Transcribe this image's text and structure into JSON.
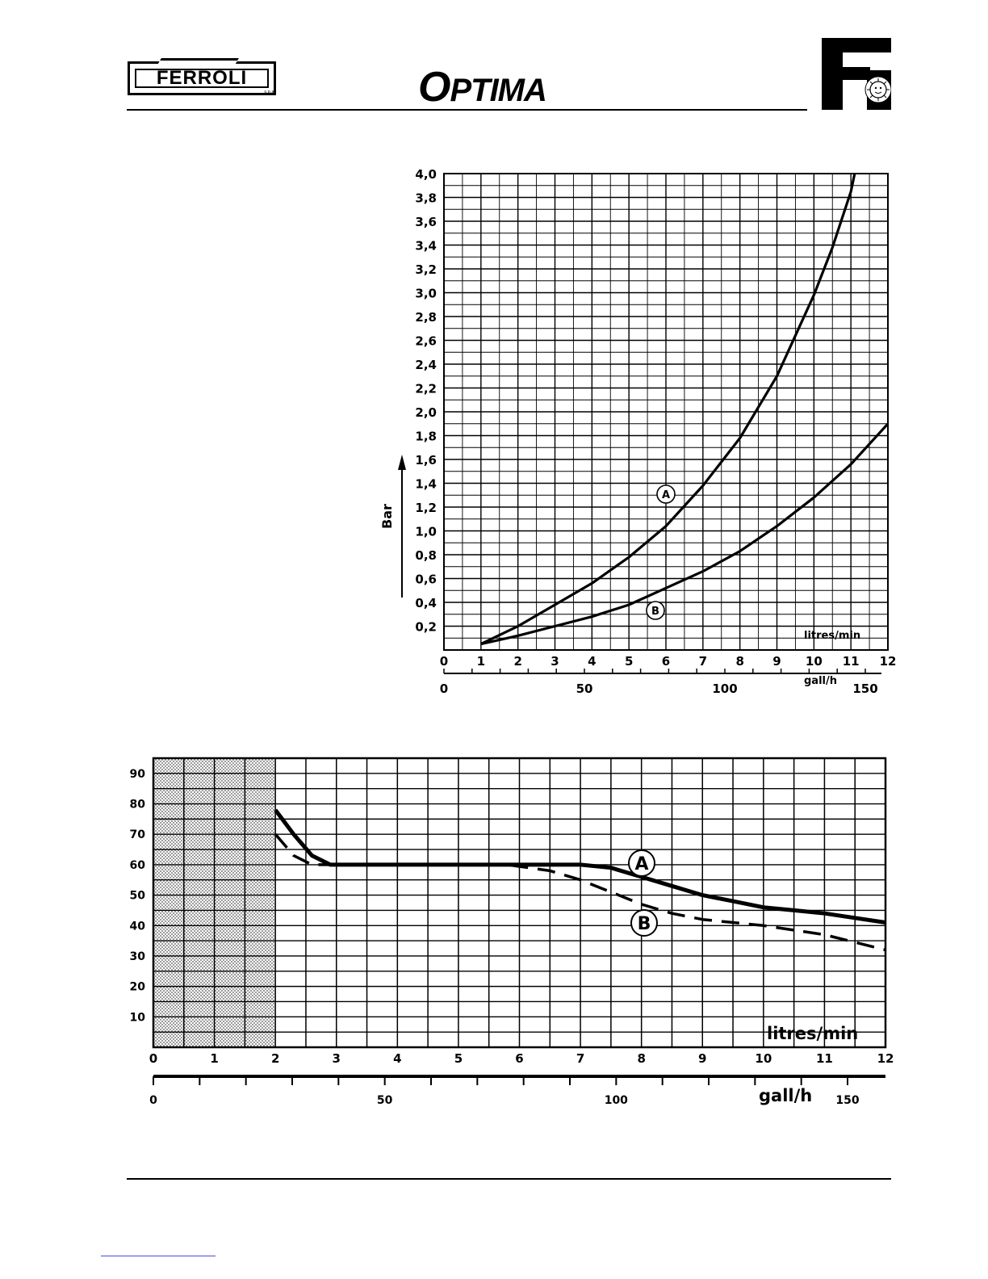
{
  "header": {
    "brand": "FERROLI",
    "brand_suffix": "s.p.a.",
    "product": "OPTIMA",
    "product_first": "O",
    "product_rest": "PTIMA",
    "emblem_icon": "ferroli-f-sun-emblem-icon"
  },
  "chart_data": [
    {
      "type": "line",
      "title": "",
      "ylabel": "Bar",
      "xlabel": "litres/min",
      "xlabel2": "gall/h",
      "xlim": [
        0,
        12
      ],
      "ylim": [
        0,
        4.0
      ],
      "x_ticks": [
        "0",
        "1",
        "2",
        "3",
        "4",
        "5",
        "6",
        "7",
        "8",
        "9",
        "10",
        "11",
        "12"
      ],
      "x2_ticks": [
        "0",
        "50",
        "100",
        "150"
      ],
      "y_ticks": [
        "0,2",
        "0,4",
        "0,6",
        "0,8",
        "1,0",
        "1,2",
        "1,4",
        "1,6",
        "1,8",
        "2,0",
        "2,2",
        "2,4",
        "2,6",
        "2,8",
        "3,0",
        "3,2",
        "3,4",
        "3,6",
        "3,8",
        "4,0"
      ],
      "grid": true,
      "series": [
        {
          "name": "A",
          "style": "solid",
          "x": [
            1,
            2,
            3,
            4,
            5,
            6,
            7,
            8,
            9,
            10,
            10.5,
            11,
            11.1
          ],
          "y": [
            0.05,
            0.2,
            0.38,
            0.56,
            0.78,
            1.04,
            1.38,
            1.78,
            2.3,
            2.98,
            3.38,
            3.85,
            4.0
          ]
        },
        {
          "name": "B",
          "style": "solid",
          "x": [
            1,
            2,
            3,
            4,
            5,
            6,
            7,
            8,
            9,
            10,
            11,
            12
          ],
          "y": [
            0.05,
            0.12,
            0.2,
            0.28,
            0.38,
            0.52,
            0.66,
            0.83,
            1.04,
            1.28,
            1.56,
            1.9
          ]
        }
      ]
    },
    {
      "type": "line",
      "title": "",
      "ylabel": "",
      "xlabel": "litres/min",
      "xlabel2": "gall/h",
      "xlim": [
        0,
        12
      ],
      "ylim": [
        0,
        95
      ],
      "x_ticks": [
        "0",
        "1",
        "2",
        "3",
        "4",
        "5",
        "6",
        "7",
        "8",
        "9",
        "10",
        "11",
        "12"
      ],
      "x2_ticks": [
        "0",
        "50",
        "100",
        "150"
      ],
      "y_ticks": [
        "10",
        "20",
        "30",
        "40",
        "50",
        "60",
        "70",
        "80",
        "90"
      ],
      "shaded_region_x": [
        0,
        2
      ],
      "grid": true,
      "series": [
        {
          "name": "A",
          "style": "solid",
          "x": [
            2,
            2.3,
            2.6,
            2.9,
            4,
            5,
            6,
            7,
            7.5,
            8,
            8.5,
            9,
            9.5,
            10,
            10.5,
            11,
            12
          ],
          "y": [
            78,
            70,
            63,
            60,
            60,
            60,
            60,
            60,
            59,
            56,
            53,
            50,
            48,
            46,
            45,
            44,
            41
          ]
        },
        {
          "name": "B",
          "style": "dashed",
          "x": [
            2,
            2.3,
            2.6,
            2.9,
            4,
            5,
            5.8,
            6.5,
            7,
            7.5,
            8,
            8.5,
            9,
            10,
            11,
            12
          ],
          "y": [
            70,
            63,
            60,
            60,
            60,
            60,
            60,
            58,
            55,
            51,
            47,
            44,
            42,
            40,
            37,
            32
          ]
        }
      ]
    }
  ]
}
